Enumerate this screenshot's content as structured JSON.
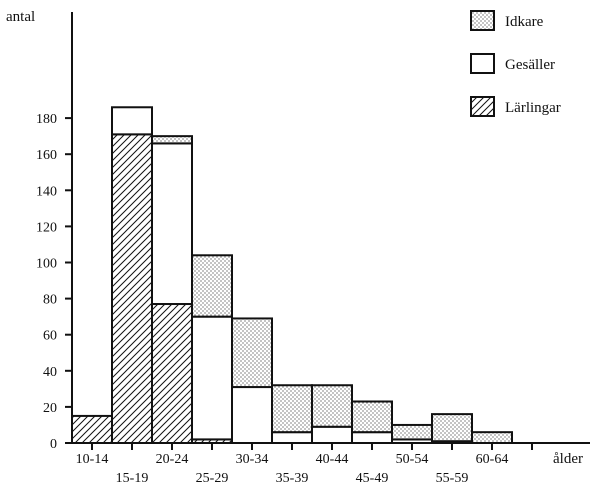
{
  "chart_data": {
    "type": "bar",
    "stacked": true,
    "ylabel": "antal",
    "xlabel": "ålder",
    "ylim": [
      0,
      190
    ],
    "yticks": [
      0,
      20,
      40,
      60,
      80,
      100,
      120,
      140,
      160,
      180
    ],
    "categories": [
      "10-14",
      "15-19",
      "20-24",
      "25-29",
      "30-34",
      "35-39",
      "40-44",
      "45-49",
      "50-54",
      "55-59",
      "60-64"
    ],
    "series": [
      {
        "name": "Lärlingar",
        "pattern": "hatch",
        "values": [
          15,
          171,
          77,
          2,
          0,
          0,
          0,
          0,
          0,
          0,
          0
        ]
      },
      {
        "name": "Gesäller",
        "pattern": "open",
        "values": [
          0,
          15,
          89,
          68,
          31,
          6,
          9,
          6,
          2,
          1,
          0
        ]
      },
      {
        "name": "Idkare",
        "pattern": "dotted",
        "values": [
          0,
          0,
          4,
          34,
          38,
          26,
          23,
          17,
          8,
          15,
          6
        ]
      }
    ],
    "legend_order": [
      "Idkare",
      "Gesäller",
      "Lärlingar"
    ],
    "legend_position": "top-right",
    "grid": false
  }
}
